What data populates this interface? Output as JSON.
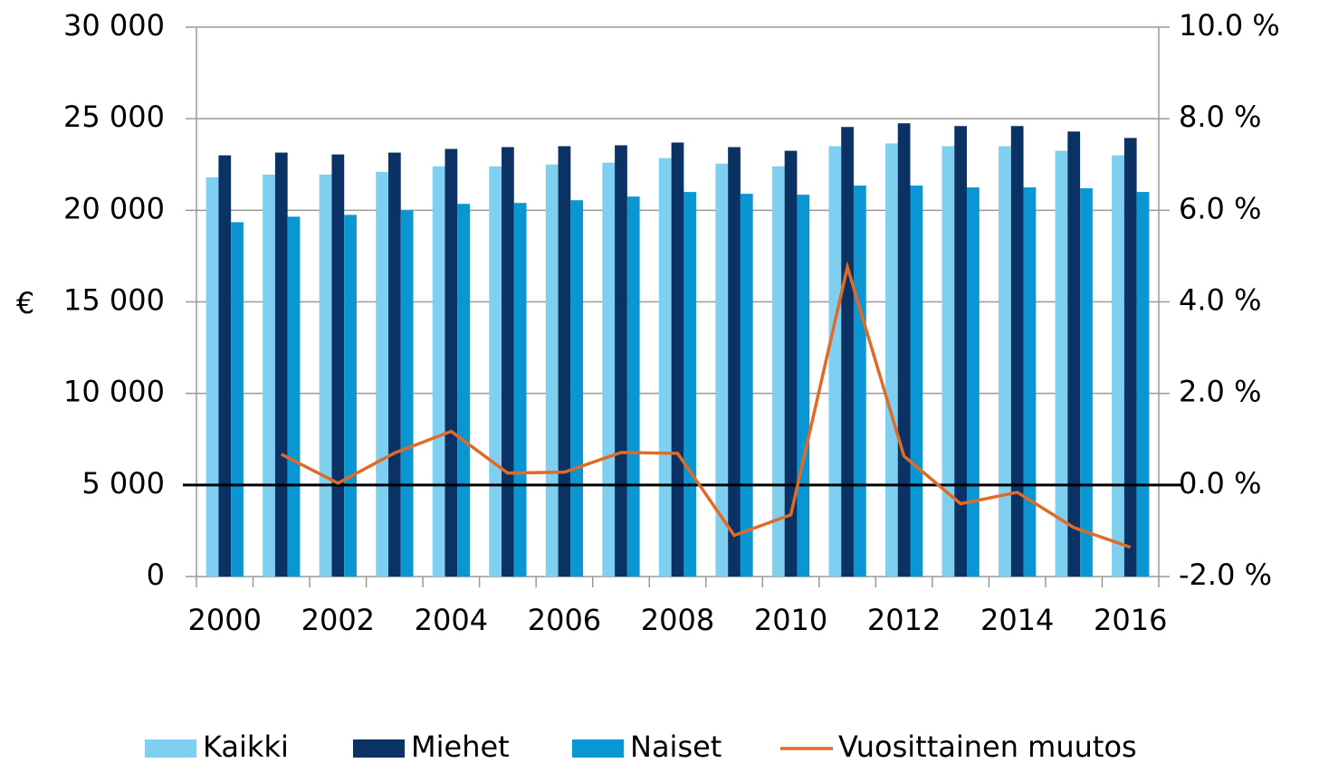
{
  "chart_data": {
    "type": "bar",
    "y_label": "€",
    "categories": [
      "2000",
      null,
      "2002",
      null,
      "2004",
      null,
      "2006",
      null,
      "2008",
      null,
      "2010",
      null,
      "2012",
      null,
      "2014",
      null,
      "2016"
    ],
    "series": [
      {
        "name": "Kaikki",
        "color": "#7fd0f0",
        "values": [
          21800,
          21950,
          21950,
          22100,
          22400,
          22400,
          22500,
          22600,
          22850,
          22550,
          22400,
          23500,
          23650,
          23500,
          23500,
          23250,
          23000
        ]
      },
      {
        "name": "Miehet",
        "color": "#0a3264",
        "values": [
          23000,
          23150,
          23050,
          23150,
          23350,
          23450,
          23500,
          23550,
          23700,
          23450,
          23250,
          24550,
          24750,
          24600,
          24600,
          24300,
          23950
        ]
      },
      {
        "name": "Naiset",
        "color": "#0a96d2",
        "values": [
          19350,
          19650,
          19750,
          20000,
          20350,
          20400,
          20550,
          20750,
          21000,
          20900,
          20850,
          21350,
          21350,
          21250,
          21250,
          21200,
          21000
        ]
      },
      {
        "name": "Vuosittainen muutos",
        "color": "#e06a26",
        "type": "line",
        "axis": "y2",
        "values": [
          null,
          0.67,
          0.04,
          0.7,
          1.17,
          0.26,
          0.28,
          0.71,
          0.69,
          -1.1,
          -0.65,
          4.76,
          0.63,
          -0.41,
          -0.16,
          -0.93,
          -1.36
        ]
      }
    ],
    "ylim": [
      0,
      30000
    ],
    "yticks": [
      0,
      {
        "value": 5000,
        "label": "5 000"
      },
      {
        "value": 10000,
        "label": "10 000"
      },
      {
        "value": 15000,
        "label": "15 000"
      },
      {
        "value": 20000,
        "label": "20 000"
      },
      {
        "value": 25000,
        "label": "25 000"
      },
      {
        "value": 30000,
        "label": "30 000"
      }
    ],
    "y2lim": [
      -2,
      10
    ],
    "y2ticks": [
      {
        "value": -2,
        "label": "-2.0 %"
      },
      {
        "value": 0,
        "label": "0.0 %"
      },
      {
        "value": 2,
        "label": "2.0 %"
      },
      {
        "value": 4,
        "label": "4.0 %"
      },
      {
        "value": 6,
        "label": "6.0 %"
      },
      {
        "value": 8,
        "label": "8.0 %"
      },
      {
        "value": 10,
        "label": "10.0 %"
      }
    ],
    "grid": true,
    "legend": "bottom"
  }
}
